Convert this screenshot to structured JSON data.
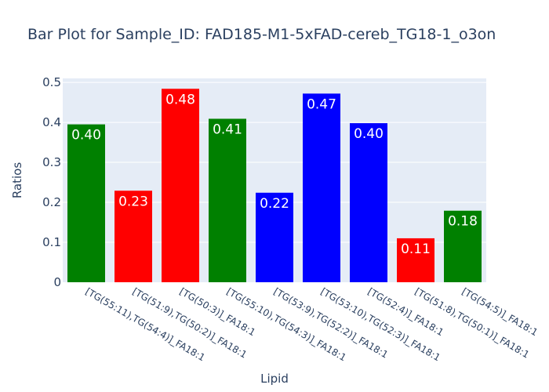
{
  "chart_data": {
    "type": "bar",
    "title": "Bar Plot for Sample_ID: FAD185-M1-5xFAD-cereb_TG18-1_o3on",
    "xlabel": "Lipid",
    "ylabel": "Ratios",
    "ylim": [
      0,
      0.51
    ],
    "yticks": [
      0,
      0.1,
      0.2,
      0.3,
      0.4,
      0.5
    ],
    "ytick_labels": [
      "0",
      "0.1",
      "0.2",
      "0.3",
      "0.4",
      "0.5"
    ],
    "grid": true,
    "categories": [
      "[TG(55:11),TG(54:4)]_FA18:1",
      "[TG(51:9),TG(50:2)]_FA18:1",
      "[TG(50:3)]_FA18:1",
      "[TG(55:10),TG(54:3)]_FA18:1",
      "[TG(53:9),TG(52:2)]_FA18:1",
      "[TG(53:10),TG(52:3)]_FA18:1",
      "[TG(52:4)]_FA18:1",
      "[TG(51:8),TG(50:1)]_FA18:1",
      "[TG(54:5)]_FA18:1"
    ],
    "values": [
      0.395,
      0.229,
      0.484,
      0.409,
      0.224,
      0.472,
      0.398,
      0.11,
      0.179
    ],
    "data_labels": [
      "0.40",
      "0.23",
      "0.48",
      "0.41",
      "0.22",
      "0.47",
      "0.40",
      "0.11",
      "0.18"
    ],
    "colors": [
      "#008000",
      "#ff0000",
      "#ff0000",
      "#008000",
      "#0000ff",
      "#0000ff",
      "#0000ff",
      "#ff0000",
      "#008000"
    ],
    "plot_background": "#e5ecf6",
    "text_color": "#2a3f5f"
  }
}
